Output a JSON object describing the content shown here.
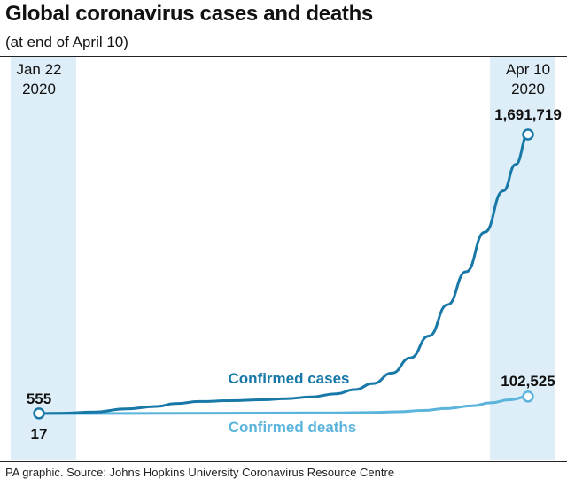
{
  "title": "Global coronavirus cases and deaths",
  "subtitle": "(at end of April 10)",
  "source": "PA graphic. Source: Johns Hopkins University Coronavirus Resource Centre",
  "colors": {
    "cases": "#1878a8",
    "deaths": "#5ab4dc",
    "band": "#deeef8",
    "text": "#111111"
  },
  "chart_data": {
    "type": "line",
    "x_range": [
      "2020-01-22",
      "2020-04-10"
    ],
    "start_label": {
      "line1": "Jan 22",
      "line2": "2020"
    },
    "end_label": {
      "line1": "Apr 10",
      "line2": "2020"
    },
    "series": [
      {
        "name": "Confirmed cases",
        "color_key": "cases",
        "start_value_label": "555",
        "end_value_label": "1,691,719",
        "points": [
          [
            "2020-01-22",
            555
          ],
          [
            "2020-01-26",
            2100
          ],
          [
            "2020-01-31",
            9800
          ],
          [
            "2020-02-05",
            28000
          ],
          [
            "2020-02-10",
            43000
          ],
          [
            "2020-02-13",
            60000
          ],
          [
            "2020-02-17",
            73000
          ],
          [
            "2020-02-22",
            78000
          ],
          [
            "2020-02-27",
            83000
          ],
          [
            "2020-03-02",
            90000
          ],
          [
            "2020-03-06",
            101000
          ],
          [
            "2020-03-10",
            120000
          ],
          [
            "2020-03-13",
            145000
          ],
          [
            "2020-03-16",
            182000
          ],
          [
            "2020-03-19",
            245000
          ],
          [
            "2020-03-22",
            337000
          ],
          [
            "2020-03-25",
            470000
          ],
          [
            "2020-03-28",
            660000
          ],
          [
            "2020-03-31",
            860000
          ],
          [
            "2020-04-03",
            1100000
          ],
          [
            "2020-04-06",
            1350000
          ],
          [
            "2020-04-08",
            1510000
          ],
          [
            "2020-04-10",
            1691719
          ]
        ]
      },
      {
        "name": "Confirmed deaths",
        "color_key": "deaths",
        "start_value_label": "17",
        "end_value_label": "102,525",
        "points": [
          [
            "2020-01-22",
            17
          ],
          [
            "2020-02-05",
            560
          ],
          [
            "2020-02-20",
            2200
          ],
          [
            "2020-03-01",
            3000
          ],
          [
            "2020-03-10",
            4300
          ],
          [
            "2020-03-16",
            7000
          ],
          [
            "2020-03-20",
            11000
          ],
          [
            "2020-03-24",
            19000
          ],
          [
            "2020-03-28",
            31000
          ],
          [
            "2020-04-01",
            47000
          ],
          [
            "2020-04-04",
            65000
          ],
          [
            "2020-04-07",
            83000
          ],
          [
            "2020-04-10",
            102525
          ]
        ]
      }
    ],
    "ylim": [
      0,
      1800000
    ]
  }
}
